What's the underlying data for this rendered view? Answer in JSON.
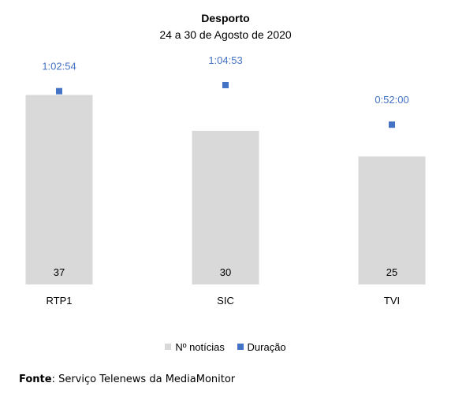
{
  "chart_data": {
    "type": "bar",
    "title": "Desporto",
    "subtitle": "24 a 30 de Agosto de 2020",
    "categories": [
      "RTP1",
      "SIC",
      "TVI"
    ],
    "series": [
      {
        "name": "Nº notícias",
        "type": "bar",
        "values": [
          37,
          30,
          25
        ],
        "color": "#d9d9d9"
      },
      {
        "name": "Duração",
        "type": "scatter",
        "values": [
          "1:02:54",
          "1:04:53",
          "0:52:00"
        ],
        "minutes": [
          62.9,
          64.88,
          52.0
        ],
        "color": "#4472c4"
      }
    ],
    "legend_position": "bottom",
    "grid": false
  },
  "source": {
    "label": "Fonte",
    "text": ": Serviço Telenews da MediaMonitor"
  }
}
